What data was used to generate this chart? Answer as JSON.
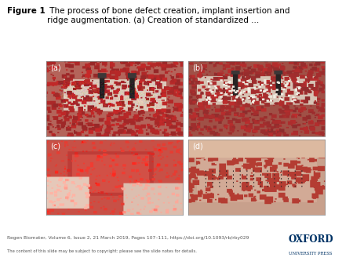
{
  "title_bold": "Figure 1",
  "title_normal": " The process of bone defect creation, implant insertion and\nridge augmentation. (a) Creation of standardized ...",
  "panel_labels": [
    "(a)",
    "(b)",
    "(c)",
    "(d)"
  ],
  "footer_line1": "Regen Biomater, Volume 6, Issue 2, 21 March 2019, Pages 107–111, https://doi.org/10.1093/rb/rby029",
  "footer_line2": "The content of this slide may be subject to copyright: please see the slide notes for details.",
  "oxford_text1": "OXFORD",
  "oxford_text2": "UNIVERSITY PRESS",
  "bg_color": "#ffffff",
  "figure_width": 4.5,
  "figure_height": 3.38
}
